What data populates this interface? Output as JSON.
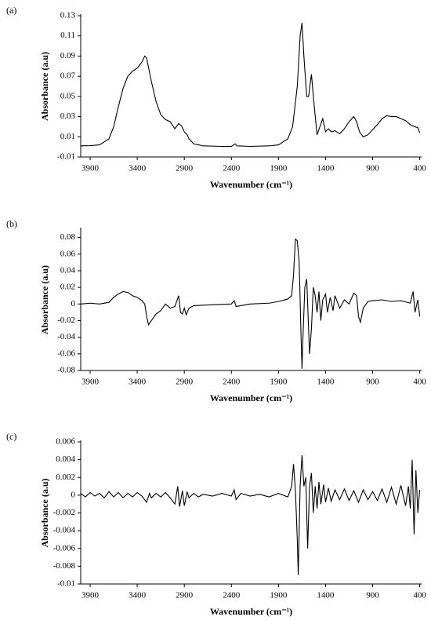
{
  "chart_data": [
    {
      "type": "line",
      "label": "(a)",
      "x_label": "Wavenumber (cm⁻¹)",
      "y_label": "Absorbance (a.u)",
      "color": "#000000",
      "xlim": [
        4000,
        380
      ],
      "xticks": [
        3900,
        3400,
        2900,
        2400,
        1900,
        1400,
        900,
        400
      ],
      "ylim": [
        -0.01,
        0.13
      ],
      "yticks": [
        -0.01,
        0.01,
        0.03,
        0.05,
        0.07,
        0.09,
        0.11,
        0.13
      ],
      "x": [
        4000,
        3900,
        3800,
        3700,
        3650,
        3600,
        3550,
        3500,
        3450,
        3400,
        3350,
        3320,
        3300,
        3250,
        3200,
        3150,
        3100,
        3050,
        3000,
        2960,
        2930,
        2900,
        2870,
        2850,
        2800,
        2700,
        2500,
        2400,
        2360,
        2340,
        2200,
        2000,
        1900,
        1800,
        1750,
        1700,
        1670,
        1650,
        1630,
        1600,
        1580,
        1550,
        1520,
        1490,
        1460,
        1430,
        1400,
        1370,
        1340,
        1300,
        1250,
        1200,
        1150,
        1100,
        1070,
        1040,
        1000,
        950,
        900,
        850,
        800,
        750,
        700,
        650,
        600,
        550,
        500,
        450,
        420,
        400
      ],
      "values": [
        0.001,
        0.0012,
        0.002,
        0.008,
        0.02,
        0.04,
        0.058,
        0.07,
        0.075,
        0.078,
        0.084,
        0.09,
        0.088,
        0.065,
        0.045,
        0.032,
        0.027,
        0.025,
        0.018,
        0.023,
        0.021,
        0.015,
        0.012,
        0.008,
        0.003,
        0.001,
        0.0005,
        0.0005,
        0.003,
        0.001,
        0.0005,
        0.001,
        0.002,
        0.008,
        0.02,
        0.06,
        0.11,
        0.123,
        0.09,
        0.05,
        0.05,
        0.072,
        0.04,
        0.012,
        0.02,
        0.028,
        0.015,
        0.018,
        0.015,
        0.016,
        0.013,
        0.018,
        0.025,
        0.03,
        0.025,
        0.015,
        0.01,
        0.012,
        0.017,
        0.022,
        0.028,
        0.031,
        0.03,
        0.03,
        0.028,
        0.026,
        0.022,
        0.02,
        0.019,
        0.014
      ]
    },
    {
      "type": "line",
      "label": "(b)",
      "x_label": "Wavenumber (cm⁻¹)",
      "y_label": "Absorbance (a.u)",
      "color": "#000000",
      "xlim": [
        4000,
        380
      ],
      "xticks": [
        3900,
        3400,
        2900,
        2400,
        1900,
        1400,
        900,
        400
      ],
      "ylim": [
        -0.08,
        0.09
      ],
      "yticks": [
        -0.08,
        -0.06,
        -0.04,
        -0.02,
        0,
        0.02,
        0.04,
        0.06,
        0.08
      ],
      "x": [
        4000,
        3900,
        3800,
        3700,
        3650,
        3600,
        3550,
        3500,
        3450,
        3400,
        3350,
        3320,
        3300,
        3280,
        3250,
        3200,
        3150,
        3100,
        3050,
        3000,
        2960,
        2940,
        2920,
        2900,
        2880,
        2850,
        2800,
        2600,
        2400,
        2370,
        2350,
        2200,
        2000,
        1900,
        1800,
        1760,
        1740,
        1720,
        1700,
        1680,
        1660,
        1650,
        1640,
        1620,
        1600,
        1590,
        1570,
        1550,
        1530,
        1510,
        1490,
        1470,
        1450,
        1430,
        1400,
        1380,
        1350,
        1320,
        1300,
        1250,
        1200,
        1150,
        1100,
        1070,
        1050,
        1030,
        1000,
        950,
        900,
        800,
        700,
        600,
        500,
        470,
        450,
        420,
        400
      ],
      "values": [
        0,
        0.001,
        0,
        0.002,
        0.008,
        0.012,
        0.015,
        0.014,
        0.01,
        0.008,
        0.004,
        0,
        -0.015,
        -0.025,
        -0.02,
        -0.012,
        -0.008,
        0,
        -0.005,
        -0.003,
        0.01,
        -0.01,
        -0.012,
        -0.005,
        -0.013,
        -0.005,
        -0.002,
        -0.001,
        0,
        0.004,
        -0.003,
        0,
        0.001,
        0.003,
        0.006,
        0.01,
        0.035,
        0.078,
        0.076,
        0.05,
        -0.04,
        -0.078,
        -0.04,
        0.02,
        0.03,
        0,
        -0.06,
        -0.03,
        0.02,
        0.01,
        -0.01,
        0.015,
        -0.02,
        0.005,
        0.012,
        -0.01,
        0.008,
        -0.008,
        0.01,
        -0.005,
        0.005,
        0,
        0.013,
        0.01,
        -0.015,
        -0.022,
        -0.005,
        0.003,
        0.004,
        0.005,
        0.003,
        0.004,
        0.001,
        0.015,
        -0.01,
        0.005,
        -0.015
      ]
    },
    {
      "type": "line",
      "label": "(c)",
      "x_label": "Wavenumber (cm⁻¹)",
      "y_label": "Absorbance (a.u)",
      "color": "#000000",
      "xlim": [
        4000,
        380
      ],
      "xticks": [
        3900,
        3400,
        2900,
        2400,
        1900,
        1400,
        900,
        400
      ],
      "ylim": [
        -0.01,
        0.006
      ],
      "yticks": [
        -0.01,
        -0.008,
        -0.006,
        -0.004,
        -0.002,
        0,
        0.002,
        0.004,
        0.006
      ],
      "x": [
        4000,
        3950,
        3900,
        3850,
        3800,
        3750,
        3700,
        3650,
        3600,
        3550,
        3500,
        3450,
        3400,
        3350,
        3300,
        3270,
        3250,
        3200,
        3150,
        3100,
        3050,
        3000,
        2970,
        2950,
        2920,
        2900,
        2870,
        2850,
        2800,
        2750,
        2700,
        2600,
        2500,
        2400,
        2370,
        2350,
        2300,
        2200,
        2100,
        2000,
        1900,
        1800,
        1760,
        1740,
        1720,
        1700,
        1690,
        1670,
        1650,
        1630,
        1610,
        1590,
        1570,
        1550,
        1530,
        1510,
        1490,
        1470,
        1450,
        1420,
        1400,
        1370,
        1340,
        1300,
        1250,
        1200,
        1150,
        1100,
        1050,
        1000,
        950,
        900,
        850,
        800,
        750,
        700,
        650,
        600,
        550,
        520,
        500,
        480,
        460,
        440,
        420,
        400
      ],
      "values": [
        0.0002,
        -0.0002,
        0.0003,
        -0.0001,
        0.0002,
        -0.0003,
        0.0004,
        -0.0002,
        0.0003,
        -0.0003,
        0.0002,
        -0.0002,
        0.0003,
        -0.0001,
        -0.0008,
        0.0002,
        -0.0003,
        0.0002,
        -0.0002,
        0.0003,
        -0.0003,
        -0.001,
        0.001,
        -0.0013,
        0.0005,
        -0.0012,
        0.0004,
        -0.0003,
        0.0002,
        -0.0002,
        0.0001,
        -0.0001,
        0.0002,
        -0.0001,
        0.0006,
        -0.0005,
        0.0002,
        -0.0001,
        0.0001,
        -0.0002,
        0.0002,
        -0.0002,
        0.001,
        0.0035,
        0.0005,
        -0.005,
        -0.009,
        0.001,
        0.0045,
        0.001,
        0.002,
        -0.006,
        0.001,
        0.0025,
        -0.002,
        0.001,
        -0.0015,
        0.0015,
        -0.001,
        0.0012,
        -0.0008,
        0.0008,
        -0.0007,
        0.0006,
        -0.0005,
        0.0007,
        -0.0006,
        0.0005,
        -0.0008,
        0.0006,
        -0.0005,
        0.0004,
        -0.0006,
        0.0007,
        -0.0008,
        0.0009,
        -0.001,
        0.0011,
        -0.0012,
        0.001,
        -0.0015,
        0.004,
        -0.0044,
        0.0028,
        -0.002,
        0.0006
      ]
    }
  ]
}
